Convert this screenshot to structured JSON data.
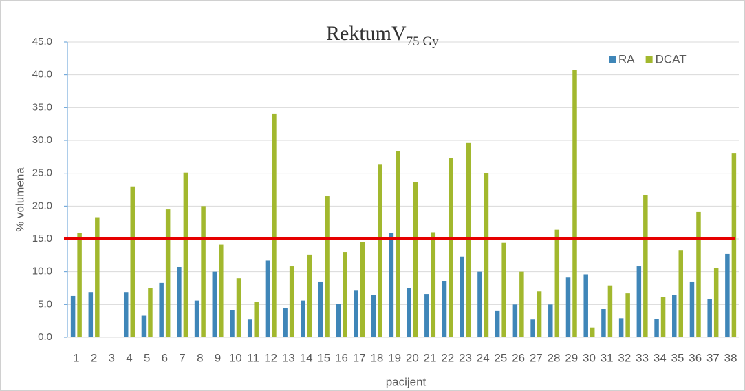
{
  "chart_data": {
    "type": "bar",
    "title": "RektumV",
    "title_subscript": "75 Gy",
    "x_label": "pacijent",
    "y_label": "% volumena",
    "categories": [
      "1",
      "2",
      "3",
      "4",
      "5",
      "6",
      "7",
      "8",
      "9",
      "10",
      "11",
      "12",
      "13",
      "14",
      "15",
      "16",
      "17",
      "18",
      "19",
      "20",
      "21",
      "22",
      "23",
      "24",
      "25",
      "26",
      "27",
      "28",
      "29",
      "30",
      "31",
      "32",
      "33",
      "34",
      "35",
      "36",
      "37",
      "38"
    ],
    "series": [
      {
        "name": "RA",
        "color": "#3f86b8",
        "values": [
          6.3,
          6.9,
          0,
          6.9,
          3.3,
          8.3,
          10.7,
          5.6,
          10.0,
          4.1,
          2.7,
          11.7,
          4.5,
          5.6,
          8.5,
          5.1,
          7.1,
          6.4,
          15.9,
          7.5,
          6.6,
          8.6,
          12.3,
          10.0,
          4.0,
          5.0,
          2.7,
          5.0,
          9.1,
          9.6,
          4.3,
          2.9,
          10.8,
          2.8,
          6.5,
          8.5,
          5.8,
          12.7
        ]
      },
      {
        "name": "DCAT",
        "color": "#a2b82e",
        "values": [
          15.9,
          18.3,
          0,
          23.0,
          7.5,
          19.5,
          25.1,
          20.0,
          14.1,
          9.0,
          5.4,
          34.1,
          10.8,
          12.6,
          21.5,
          13.0,
          14.5,
          26.4,
          28.4,
          23.6,
          16.0,
          27.3,
          29.6,
          25.0,
          14.4,
          10.0,
          7.0,
          16.4,
          40.7,
          1.5,
          7.9,
          6.7,
          21.7,
          6.1,
          13.3,
          19.1,
          10.5,
          28.1
        ]
      }
    ],
    "reference_line": {
      "value": 15,
      "color": "#e60000"
    },
    "ylim": [
      0,
      45
    ],
    "yticks": [
      {
        "value": 0,
        "label": "0.0"
      },
      {
        "value": 5,
        "label": "5.0"
      },
      {
        "value": 10,
        "label": "10.0"
      },
      {
        "value": 15,
        "label": "15.0"
      },
      {
        "value": 20,
        "label": "20.0"
      },
      {
        "value": 25,
        "label": "25.0"
      },
      {
        "value": 30,
        "label": "30.0"
      },
      {
        "value": 35,
        "label": "35.0"
      },
      {
        "value": 40,
        "label": "40.0"
      },
      {
        "value": 45,
        "label": "45.0"
      }
    ],
    "grid": true,
    "legend": "top-right"
  }
}
